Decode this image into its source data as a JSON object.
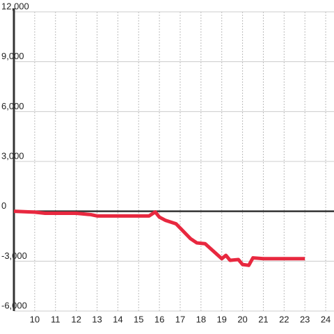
{
  "chart_data": {
    "type": "line",
    "x": [
      9,
      10,
      10.5,
      12,
      12.7,
      13,
      15.5,
      15.8,
      16,
      16.3,
      16.8,
      17.5,
      17.8,
      18.2,
      19,
      19.2,
      19.4,
      19.8,
      20,
      20.3,
      20.5,
      21,
      23
    ],
    "series": [
      {
        "color": "#e8283f",
        "values": [
          0,
          -50,
          -120,
          -120,
          -200,
          -280,
          -280,
          -40,
          -350,
          -550,
          -750,
          -1650,
          -1900,
          -1950,
          -2850,
          -2650,
          -2950,
          -2900,
          -3200,
          -3250,
          -2800,
          -2850,
          -2850
        ]
      }
    ],
    "xlim": [
      9,
      24.4
    ],
    "xticks": [
      10,
      11,
      12,
      13,
      14,
      15,
      16,
      17,
      18,
      19,
      20,
      21,
      22,
      23,
      24
    ],
    "ylim": [
      -6000,
      12000
    ],
    "yticks": [
      {
        "value": -6000,
        "label": "-6,000"
      },
      {
        "value": -3000,
        "label": "-3,000"
      },
      0,
      {
        "value": 3000,
        "label": "3,000"
      },
      {
        "value": 6000,
        "label": "6,000"
      },
      {
        "value": 9000,
        "label": "9,000"
      },
      {
        "value": 12000,
        "label": "12,000"
      }
    ],
    "grid": true
  }
}
